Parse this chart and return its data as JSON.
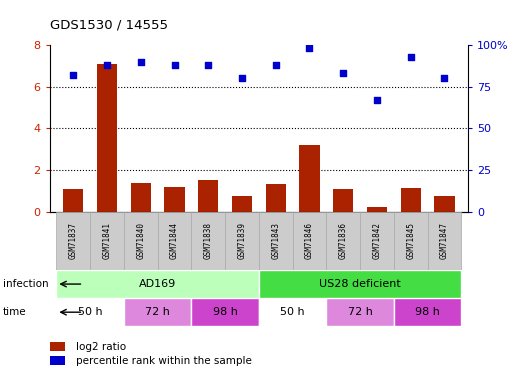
{
  "title": "GDS1530 / 14555",
  "samples": [
    "GSM71837",
    "GSM71841",
    "GSM71840",
    "GSM71844",
    "GSM71838",
    "GSM71839",
    "GSM71843",
    "GSM71846",
    "GSM71836",
    "GSM71842",
    "GSM71845",
    "GSM71847"
  ],
  "log2_ratio": [
    1.1,
    7.1,
    1.4,
    1.2,
    1.55,
    0.75,
    1.35,
    3.2,
    1.1,
    0.25,
    1.15,
    0.75
  ],
  "percentile_rank": [
    82,
    88,
    90,
    88,
    88,
    80,
    88,
    98,
    83,
    67,
    93,
    80
  ],
  "bar_color": "#aa2200",
  "dot_color": "#0000cc",
  "ylim_left": [
    0,
    8
  ],
  "ylim_right": [
    0,
    100
  ],
  "yticks_left": [
    0,
    2,
    4,
    6,
    8
  ],
  "yticks_right": [
    0,
    25,
    50,
    75,
    100
  ],
  "ytick_labels_right": [
    "0",
    "25",
    "50",
    "75",
    "100%"
  ],
  "infection_labels": [
    "AD169",
    "US28 deficient"
  ],
  "infection_colors": [
    "#bbffbb",
    "#44dd44"
  ],
  "time_labels": [
    "50 h",
    "72 h",
    "98 h",
    "50 h",
    "72 h",
    "98 h"
  ],
  "time_colors": [
    "#ffffff",
    "#dd88dd",
    "#cc44cc",
    "#ffffff",
    "#dd88dd",
    "#cc44cc"
  ],
  "legend_bar_label": "log2 ratio",
  "legend_dot_label": "percentile rank within the sample",
  "bg_color": "#ffffff",
  "left_tick_color": "#cc2200",
  "right_tick_color": "#0000cc",
  "sample_bg": "#cccccc",
  "sample_border": "#aaaaaa"
}
